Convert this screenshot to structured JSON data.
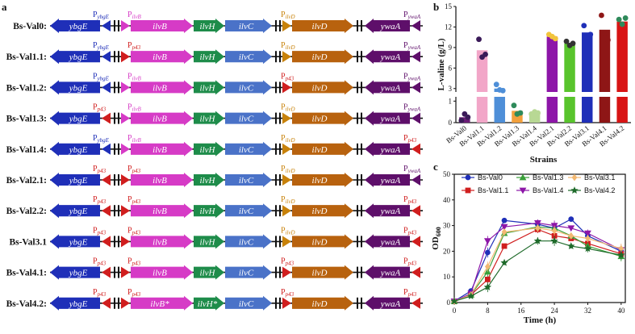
{
  "panels": {
    "a": "a",
    "b": "b",
    "c": "c"
  },
  "colors": {
    "ybgE": "#1f2fb8",
    "ilvB": "#d63bc6",
    "ilvH": "#1e8c4a",
    "ilvC": "#4a72c8",
    "ilvD": "#b8620e",
    "ywaA": "#5e0f6a",
    "p43": "#d01e1e",
    "native_ybgE": "#1f2fb8",
    "native_ilvB": "#d63bc6",
    "native_ilvD": "#c8820a",
    "native_ywaA": "#5e0f6a"
  },
  "panel_a": {
    "rows": [
      {
        "label": "Bs-Val0:",
        "p_ybgE": "native",
        "p_ilvB": "native",
        "p_ilvD": "native",
        "p_ywaA": "native",
        "ilvB": "ilvB",
        "ilvH": "ilvH"
      },
      {
        "label": "Bs-Val1.1:",
        "p_ybgE": "native",
        "p_ilvB": "p43",
        "p_ilvD": "native",
        "p_ywaA": "native",
        "ilvB": "ilvB",
        "ilvH": "ilvH"
      },
      {
        "label": "Bs-Val1.2:",
        "p_ybgE": "native",
        "p_ilvB": "native",
        "p_ilvD": "p43",
        "p_ywaA": "native",
        "ilvB": "ilvB",
        "ilvH": "ilvH"
      },
      {
        "label": "Bs-Val1.3:",
        "p_ybgE": "p43",
        "p_ilvB": "native",
        "p_ilvD": "native",
        "p_ywaA": "native",
        "ilvB": "ilvB",
        "ilvH": "ilvH"
      },
      {
        "label": "Bs-Val1.4:",
        "p_ybgE": "native",
        "p_ilvB": "native",
        "p_ilvD": "native",
        "p_ywaA": "p43",
        "ilvB": "ilvB",
        "ilvH": "ilvH"
      },
      {
        "label": "Bs-Val2.1:",
        "p_ybgE": "p43",
        "p_ilvB": "p43",
        "p_ilvD": "native",
        "p_ywaA": "native",
        "ilvB": "ilvB",
        "ilvH": "ilvH"
      },
      {
        "label": "Bs-Val2.2:",
        "p_ybgE": "p43",
        "p_ilvB": "p43",
        "p_ilvD": "native",
        "p_ywaA": "p43",
        "ilvB": "ilvB",
        "ilvH": "ilvH"
      },
      {
        "label": "Bs-Val3.1",
        "p_ybgE": "p43",
        "p_ilvB": "p43",
        "p_ilvD": "native",
        "p_ywaA": "p43",
        "ilvB": "ilvB",
        "ilvH": "ilvH"
      },
      {
        "label": "Bs-Val4.1:",
        "p_ybgE": "p43",
        "p_ilvB": "p43",
        "p_ilvD": "p43",
        "p_ywaA": "p43",
        "ilvB": "ilvB",
        "ilvH": "ilvH"
      },
      {
        "label": "Bs-Val4.2:",
        "p_ybgE": "p43",
        "p_ilvB": "p43",
        "p_ilvD": "p43",
        "p_ywaA": "p43",
        "ilvB": "ilvB*",
        "ilvH": "ilvH*"
      }
    ],
    "gene_names": {
      "ybgE": "ybgE",
      "ilvC": "ilvC",
      "ilvD": "ilvD",
      "ywaA": "ywaA"
    },
    "promoter_letter": "P",
    "promoter_subs": {
      "ybgE": "ybgE",
      "ilvB": "ilvB",
      "ilvD": "ilvD",
      "ywaA": "ywaA",
      "p43": "p43"
    }
  },
  "chart_data": [
    {
      "type": "bar",
      "panel": "b",
      "categories": [
        "Bs-Val0",
        "Bs-Val1.1",
        "Bs-Val1.2",
        "Bs-Val1.3",
        "Bs-Val1.4",
        "Bs-Val2.1",
        "Bs-Val2.2",
        "Bs-Val3.1",
        "Bs-Val4.1",
        "Bs-Val4.2"
      ],
      "values": [
        0.25,
        8.6,
        3.0,
        0.55,
        0.45,
        10.6,
        9.6,
        11.2,
        11.6,
        12.8
      ],
      "points": [
        [
          0.1,
          0.4,
          0.25
        ],
        [
          10.2,
          7.6,
          8.0
        ],
        [
          3.6,
          2.8,
          2.7
        ],
        [
          0.8,
          0.4,
          0.45
        ],
        [
          0.4,
          0.5,
          0.45
        ],
        [
          10.9,
          10.6,
          10.3
        ],
        [
          9.9,
          9.3,
          9.6
        ],
        [
          12.2,
          10.6,
          10.9
        ],
        [
          13.7,
          11.0,
          10.1
        ],
        [
          13.1,
          12.4,
          13.3
        ]
      ],
      "bar_colors": [
        "#6b1c76",
        "#f2a6c8",
        "#4e8fd8",
        "#f2a03c",
        "#b8d894",
        "#8d16a8",
        "#58c42c",
        "#1f2fb8",
        "#8e1616",
        "#d81414"
      ],
      "point_colors": [
        "#3a1a58",
        "#3a1a58",
        "#4e8fd8",
        "#2e8a5a",
        "#b8d894",
        "#f2c43c",
        "#333333",
        "#1f2fb8",
        "#8e1616",
        "#2e8a5a"
      ],
      "ylabel": "L-valine (g/L)",
      "xlabel": "Strains",
      "y_ticks_low": [
        0,
        1
      ],
      "y_ticks_high": [
        3,
        6,
        9,
        12,
        15
      ],
      "y_break": [
        1.2,
        2.5
      ],
      "ylim": [
        0,
        15
      ]
    },
    {
      "type": "line",
      "panel": "c",
      "x": [
        0,
        4,
        8,
        12,
        20,
        24,
        28,
        32,
        40
      ],
      "series": [
        {
          "name": "Bs-Val0",
          "values": [
            0.5,
            4.5,
            19.5,
            32,
            30.5,
            29,
            32.5,
            26,
            20
          ],
          "color": "#1f2fb8",
          "marker": "circle"
        },
        {
          "name": "Bs-Val1.1",
          "values": [
            0.5,
            3,
            9,
            22,
            28.5,
            26,
            25,
            23,
            19
          ],
          "color": "#d01e1e",
          "marker": "square"
        },
        {
          "name": "Bs-Val1.3",
          "values": [
            0.5,
            3,
            12,
            27,
            29.5,
            29,
            26,
            22,
            18
          ],
          "color": "#3aa03a",
          "marker": "triangle"
        },
        {
          "name": "Bs-Val1.4",
          "values": [
            0.5,
            3.5,
            24,
            29.5,
            31,
            30,
            29,
            27,
            20.5
          ],
          "color": "#8d16a8",
          "marker": "triangle-down"
        },
        {
          "name": "Bs-Val3.1",
          "values": [
            0.5,
            3,
            14,
            27.5,
            29,
            28,
            26,
            25,
            21
          ],
          "color": "#f2b872",
          "marker": "diamond"
        },
        {
          "name": "Bs-Val4.2",
          "values": [
            0.5,
            2.5,
            6,
            15.5,
            24,
            24,
            22,
            21,
            18.5
          ],
          "color": "#1e6a2a",
          "marker": "star"
        }
      ],
      "xlabel": "Time (h)",
      "ylabel": "OD",
      "ylabel_sub": "600",
      "xlim": [
        0,
        41
      ],
      "ylim": [
        0,
        50
      ],
      "x_ticks": [
        0,
        8,
        16,
        24,
        32,
        40
      ],
      "y_ticks": [
        0,
        10,
        20,
        30,
        40,
        50
      ],
      "legend": "top"
    }
  ]
}
